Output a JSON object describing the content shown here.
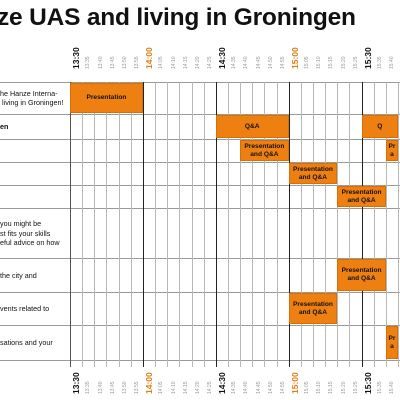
{
  "title": "ze UAS and living in Groningen",
  "colors": {
    "accent": "#ee7f11",
    "accent_text": "#e87a10"
  },
  "time_axis": {
    "labels": [
      "13:30",
      "13:35",
      "13:40",
      "13:45",
      "13:50",
      "13:55",
      "14:00",
      "14:05",
      "14:10",
      "14:15",
      "14:20",
      "14:25",
      "14:30",
      "14:35",
      "14:40",
      "14:45",
      "14:50",
      "14:55",
      "15:00",
      "15:05",
      "15:10",
      "15:15",
      "15:20",
      "15:25",
      "15:30",
      "15:35",
      "15:40"
    ],
    "major": [
      "13:30",
      "14:00",
      "14:30",
      "15:00",
      "15:30"
    ],
    "highlighted": [
      "14:00",
      "15:00"
    ]
  },
  "rows": [
    {
      "label": "he Hanze Interna-\n living in Groningen!",
      "bold": false
    },
    {
      "label": "en",
      "bold": true
    },
    {
      "label": "",
      "bold": false
    },
    {
      "label": "",
      "bold": false
    },
    {
      "label": "",
      "bold": false
    },
    {
      "label": "you might be\nst fits your skills\neful advice on how",
      "bold": false
    },
    {
      "label": "the city and",
      "bold": false
    },
    {
      "label": "vents related to",
      "bold": false
    },
    {
      "label": "sations and your",
      "bold": false
    }
  ],
  "sessions": [
    {
      "row": 0,
      "start": "13:30",
      "end": "14:00",
      "label": "Presentation"
    },
    {
      "row": 1,
      "start": "14:30",
      "end": "15:00",
      "label": "Q&A"
    },
    {
      "row": 1,
      "start": "15:30",
      "end": "15:45",
      "label": "Q"
    },
    {
      "row": 2,
      "start": "14:40",
      "end": "15:00",
      "label": "Presentation\nand Q&A"
    },
    {
      "row": 2,
      "start": "15:40",
      "end": "15:45",
      "label": "Pr\na"
    },
    {
      "row": 3,
      "start": "15:00",
      "end": "15:20",
      "label": "Presentation\nand Q&A"
    },
    {
      "row": 4,
      "start": "15:20",
      "end": "15:40",
      "label": "Presentation\nand Q&A"
    },
    {
      "row": 6,
      "start": "15:20",
      "end": "15:40",
      "label": "Presentation\nand Q&A"
    },
    {
      "row": 7,
      "start": "15:00",
      "end": "15:20",
      "label": "Presentation\nand Q&A"
    },
    {
      "row": 8,
      "start": "15:40",
      "end": "15:45",
      "label": "Pr\na"
    }
  ]
}
